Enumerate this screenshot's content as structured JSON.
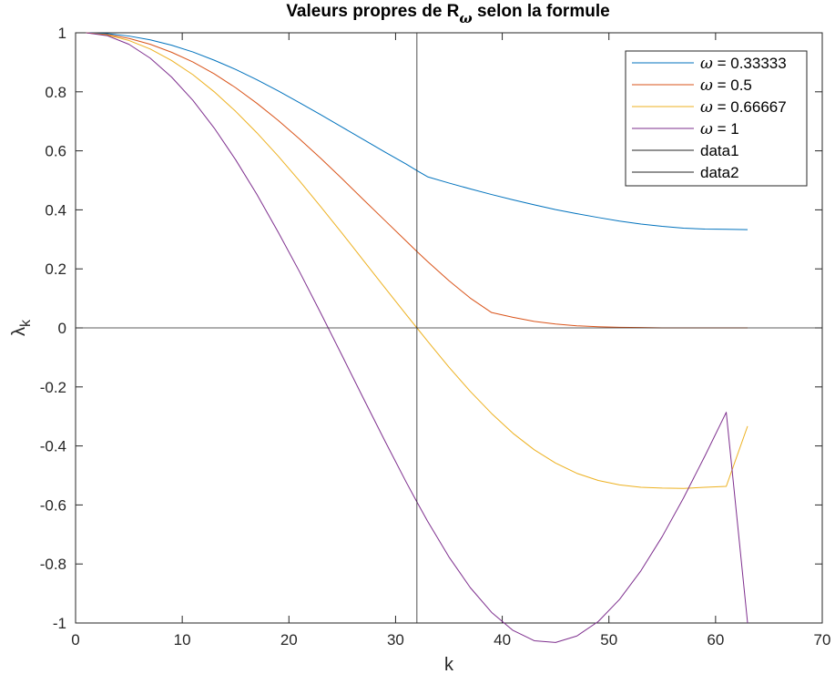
{
  "chart_data": {
    "type": "line",
    "title": {
      "prefix": "Valeurs propres de R",
      "subscript": "ω",
      "suffix": " selon la formule"
    },
    "xlabel": "k",
    "ylabel": {
      "symbol": "λ",
      "subscript": "k"
    },
    "xlim": [
      0,
      70
    ],
    "ylim": [
      -1,
      1
    ],
    "xticks": [
      0,
      10,
      20,
      30,
      40,
      50,
      60,
      70
    ],
    "yticks": [
      -1,
      -0.8,
      -0.6,
      -0.4,
      -0.2,
      0,
      0.2,
      0.4,
      0.6,
      0.8,
      1
    ],
    "grid": false,
    "legend_position": "top-right",
    "x": [
      1,
      3,
      5,
      7,
      9,
      11,
      13,
      15,
      17,
      19,
      21,
      23,
      25,
      27,
      29,
      31,
      32,
      33,
      35,
      37,
      39,
      41,
      43,
      45,
      47,
      49,
      51,
      53,
      55,
      57,
      59,
      61,
      63
    ],
    "series": [
      {
        "name_symbol": "ω",
        "name_value": " = 0.33333",
        "color": "#0072BD",
        "values": [
          1.0,
          0.997,
          0.989,
          0.976,
          0.958,
          0.935,
          0.907,
          0.876,
          0.841,
          0.803,
          0.763,
          0.722,
          0.68,
          0.638,
          0.596,
          0.555,
          0.533,
          0.512,
          0.491,
          0.471,
          0.452,
          0.434,
          0.417,
          0.401,
          0.387,
          0.374,
          0.362,
          0.352,
          0.344,
          0.338,
          0.335,
          0.334,
          0.333
        ]
      },
      {
        "name_symbol": "ω",
        "name_value": " = 0.5",
        "color": "#D95319",
        "values": [
          1.0,
          0.994,
          0.981,
          0.961,
          0.934,
          0.901,
          0.861,
          0.814,
          0.761,
          0.703,
          0.64,
          0.574,
          0.505,
          0.434,
          0.364,
          0.294,
          0.259,
          0.225,
          0.16,
          0.101,
          0.052,
          0.036,
          0.022,
          0.013,
          0.007,
          0.004,
          0.002,
          0.001,
          0.0,
          0.0,
          0.0,
          0.0,
          0.0
        ]
      },
      {
        "name_symbol": "ω",
        "name_value": " = 0.66667",
        "color": "#EDB120",
        "values": [
          1.0,
          0.992,
          0.974,
          0.945,
          0.906,
          0.858,
          0.8,
          0.734,
          0.661,
          0.582,
          0.498,
          0.41,
          0.32,
          0.228,
          0.136,
          0.045,
          0.0,
          -0.045,
          -0.133,
          -0.215,
          -0.29,
          -0.357,
          -0.413,
          -0.458,
          -0.493,
          -0.517,
          -0.532,
          -0.54,
          -0.543,
          -0.544,
          -0.54,
          -0.537,
          -0.333
        ]
      },
      {
        "name_symbol": "ω",
        "name_value": " = 1",
        "color": "#7E2F8E",
        "values": [
          1.0,
          0.99,
          0.961,
          0.914,
          0.85,
          0.771,
          0.677,
          0.57,
          0.452,
          0.324,
          0.19,
          0.049,
          -0.095,
          -0.24,
          -0.383,
          -0.523,
          -0.59,
          -0.655,
          -0.776,
          -0.88,
          -0.964,
          -1.025,
          -1.06,
          -1.066,
          -1.044,
          -0.995,
          -0.92,
          -0.823,
          -0.707,
          -0.576,
          -0.434,
          -0.286,
          -1.0
        ]
      },
      {
        "name": "data1",
        "color": "#262626",
        "x": [
          32,
          32
        ],
        "values": [
          -1,
          1
        ]
      },
      {
        "name": "data2",
        "color": "#262626",
        "x": [
          0,
          70
        ],
        "values": [
          0,
          0
        ]
      }
    ]
  }
}
